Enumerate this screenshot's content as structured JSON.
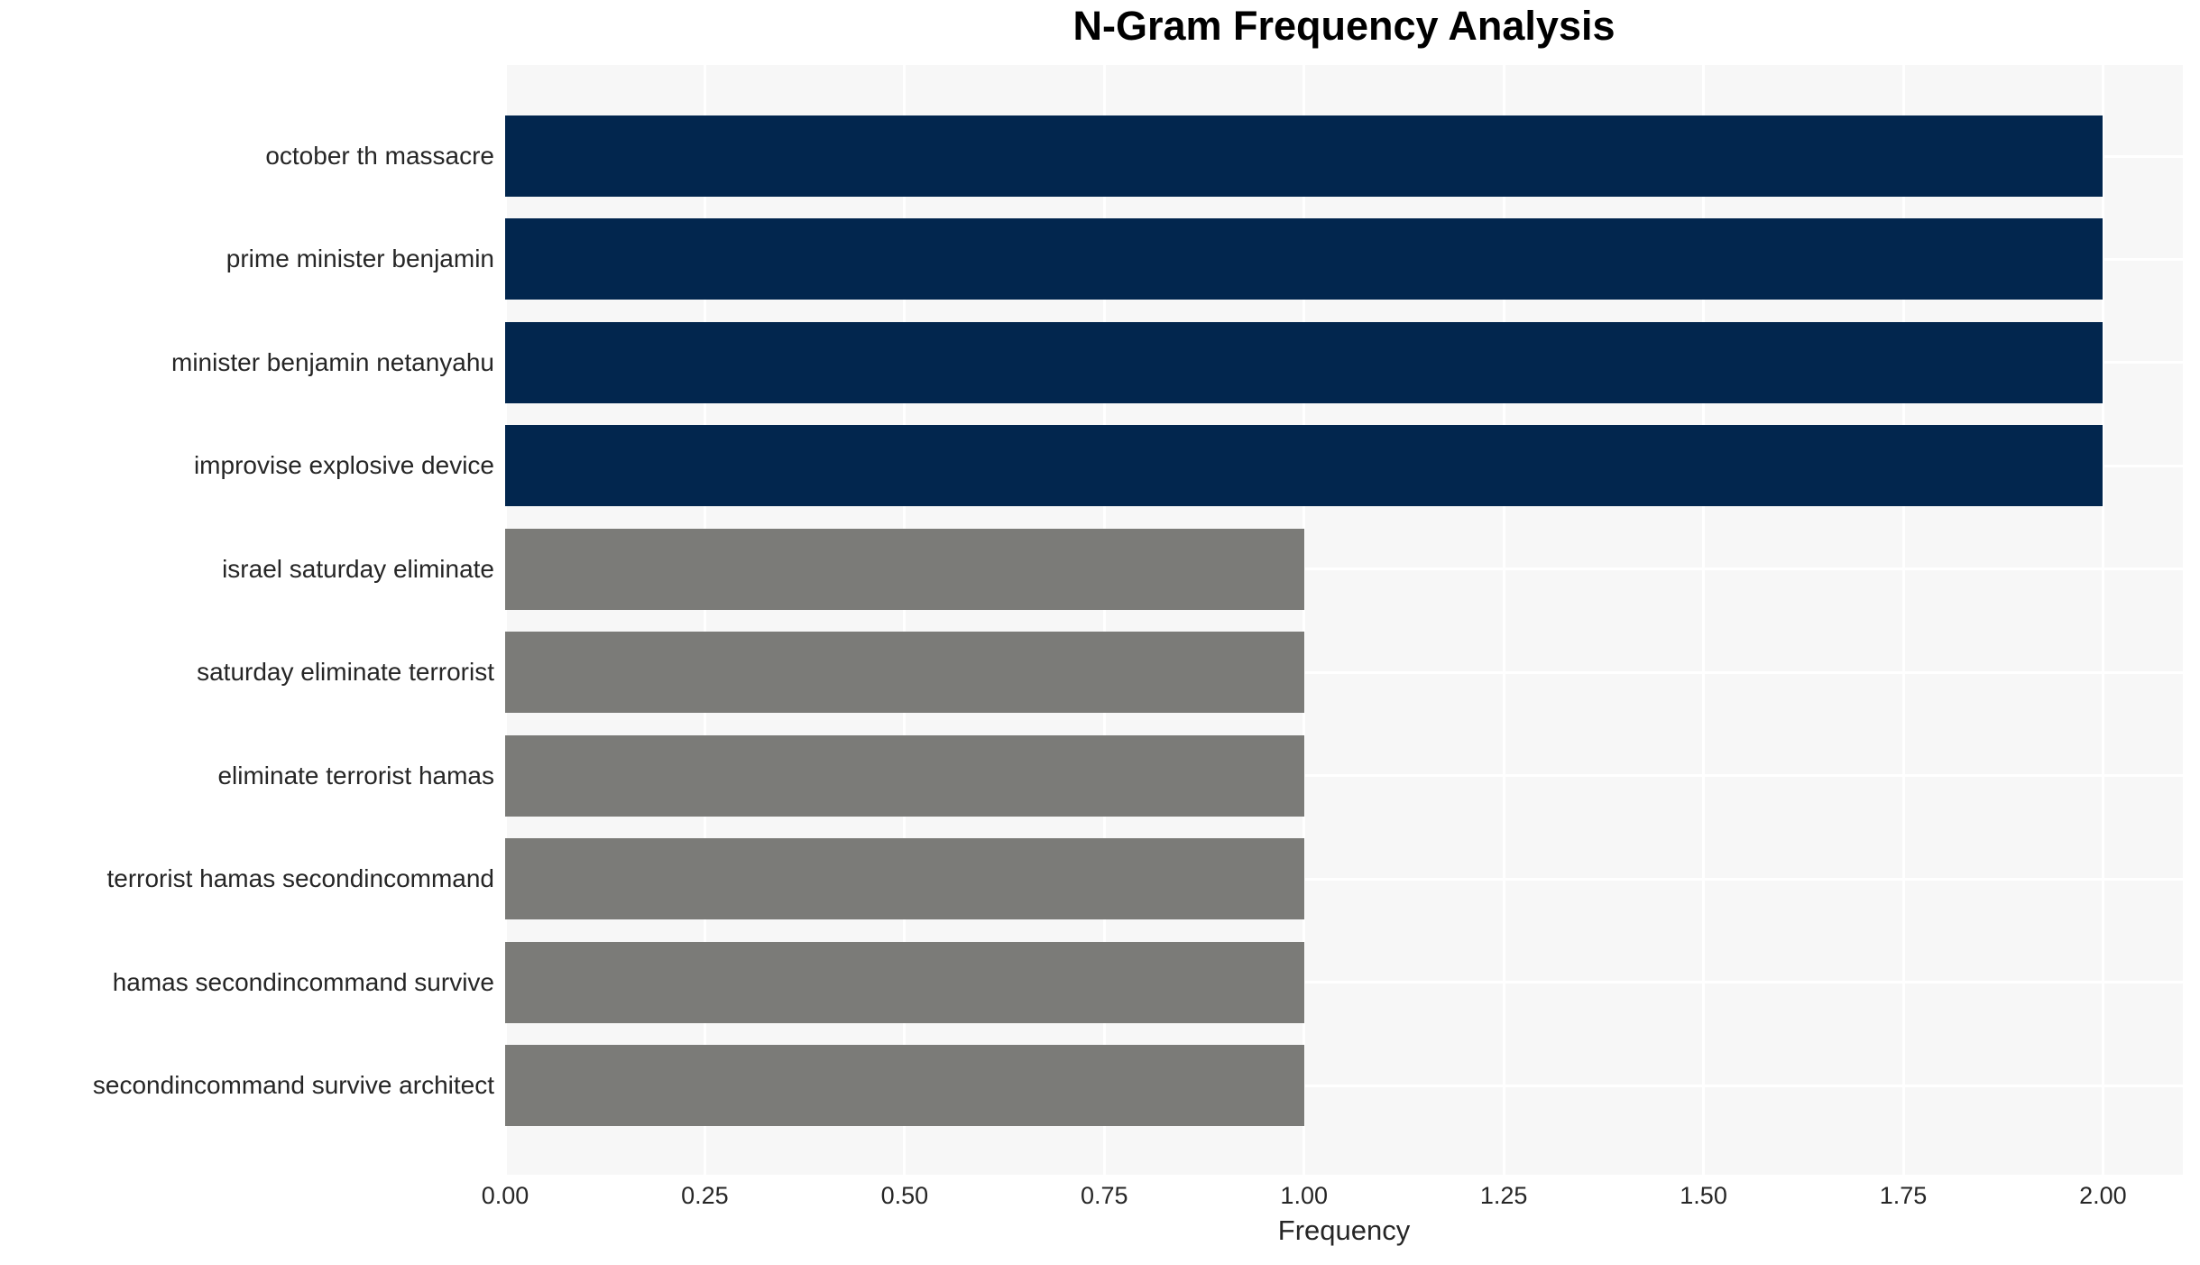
{
  "chart_data": {
    "type": "bar",
    "orientation": "horizontal",
    "title": "N-Gram Frequency Analysis",
    "xlabel": "Frequency",
    "ylabel": "",
    "categories": [
      "october th massacre",
      "prime minister benjamin",
      "minister benjamin netanyahu",
      "improvise explosive device",
      "israel saturday eliminate",
      "saturday eliminate terrorist",
      "eliminate terrorist hamas",
      "terrorist hamas secondincommand",
      "hamas secondincommand survive",
      "secondincommand survive architect"
    ],
    "values": [
      2,
      2,
      2,
      2,
      1,
      1,
      1,
      1,
      1,
      1
    ],
    "bar_colors": [
      "#02264e",
      "#02264e",
      "#02264e",
      "#02264e",
      "#7b7b78",
      "#7b7b78",
      "#7b7b78",
      "#7b7b78",
      "#7b7b78",
      "#7b7b78"
    ],
    "xlim": [
      0,
      2.1
    ],
    "xtick_labels": [
      "0.00",
      "0.25",
      "0.50",
      "0.75",
      "1.00",
      "1.25",
      "1.50",
      "1.75",
      "2.00"
    ],
    "xtick_values": [
      0,
      0.25,
      0.5,
      0.75,
      1,
      1.25,
      1.5,
      1.75,
      2
    ],
    "grid": true,
    "legend": false,
    "colors": {
      "high_value_bar": "#02264e",
      "low_value_bar": "#7b7b78",
      "plot_background": "#f7f7f7",
      "gridline": "#ffffff",
      "text": "#262626",
      "title_text": "#000000"
    }
  }
}
